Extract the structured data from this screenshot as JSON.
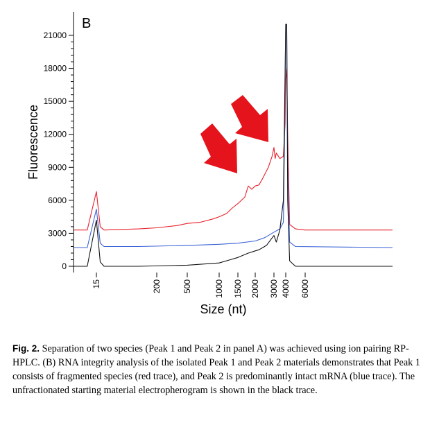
{
  "chart_data": {
    "type": "line",
    "panel_label": "B",
    "xlabel": "Size (nt)",
    "ylabel": "Fluorescence",
    "ylim": [
      -300,
      22000
    ],
    "x_ticks": [
      "15",
      "200",
      "500",
      "1000",
      "1500",
      "2000",
      "3000",
      "4000",
      "6000"
    ],
    "y_ticks": [
      0,
      3000,
      6000,
      9000,
      12000,
      15000,
      18000,
      21000
    ],
    "y_tick_labels": [
      "0",
      "3000",
      "6000",
      "9000",
      "12000",
      "15000",
      "18000",
      "21000"
    ],
    "grid": false,
    "legend": "none",
    "series": [
      {
        "color": "#e8202a",
        "points": [
          [
            14,
            3300
          ],
          [
            14.6,
            3300
          ],
          [
            15,
            6800
          ],
          [
            15.5,
            3600
          ],
          [
            16,
            3300
          ],
          [
            100,
            3400
          ],
          [
            200,
            3500
          ],
          [
            400,
            3700
          ],
          [
            500,
            3900
          ],
          [
            700,
            4000
          ],
          [
            900,
            4300
          ],
          [
            1000,
            4500
          ],
          [
            1200,
            4800
          ],
          [
            1350,
            5300
          ],
          [
            1500,
            5700
          ],
          [
            1700,
            6300
          ],
          [
            1800,
            7300
          ],
          [
            1900,
            7000
          ],
          [
            2000,
            7300
          ],
          [
            2200,
            7400
          ],
          [
            2400,
            8000
          ],
          [
            2700,
            9000
          ],
          [
            2900,
            10000
          ],
          [
            3000,
            10800
          ],
          [
            3100,
            9800
          ],
          [
            3200,
            10300
          ],
          [
            3500,
            9800
          ],
          [
            3800,
            10000
          ],
          [
            3950,
            13000
          ],
          [
            4000,
            17000
          ],
          [
            4100,
            18000
          ],
          [
            4200,
            12000
          ],
          [
            4400,
            3800
          ],
          [
            5000,
            3400
          ],
          [
            6000,
            3300
          ],
          [
            7000,
            3300
          ]
        ]
      },
      {
        "color": "#3a63d6",
        "points": [
          [
            14,
            1700
          ],
          [
            14.6,
            1700
          ],
          [
            15,
            5200
          ],
          [
            15.5,
            2100
          ],
          [
            16,
            1800
          ],
          [
            100,
            1800
          ],
          [
            500,
            1900
          ],
          [
            1000,
            2000
          ],
          [
            1500,
            2100
          ],
          [
            2000,
            2300
          ],
          [
            2500,
            2600
          ],
          [
            3000,
            3100
          ],
          [
            3500,
            3400
          ],
          [
            3800,
            4000
          ],
          [
            3900,
            12000
          ],
          [
            4000,
            22000
          ],
          [
            4100,
            22000
          ],
          [
            4200,
            9000
          ],
          [
            4400,
            2200
          ],
          [
            5000,
            1800
          ],
          [
            7000,
            1700
          ]
        ]
      },
      {
        "color": "#111111",
        "points": [
          [
            14,
            0
          ],
          [
            14.6,
            0
          ],
          [
            15,
            4200
          ],
          [
            15.5,
            400
          ],
          [
            16,
            0
          ],
          [
            100,
            0
          ],
          [
            500,
            100
          ],
          [
            1000,
            300
          ],
          [
            1300,
            600
          ],
          [
            1500,
            800
          ],
          [
            1800,
            1200
          ],
          [
            2000,
            1400
          ],
          [
            2200,
            1500
          ],
          [
            2600,
            1900
          ],
          [
            3000,
            2800
          ],
          [
            3200,
            2200
          ],
          [
            3500,
            3300
          ],
          [
            3800,
            6000
          ],
          [
            3900,
            14000
          ],
          [
            4000,
            22000
          ],
          [
            4100,
            22000
          ],
          [
            4200,
            6000
          ],
          [
            4400,
            500
          ],
          [
            5000,
            0
          ],
          [
            7000,
            0
          ]
        ]
      }
    ],
    "annotations": [
      {
        "type": "arrow",
        "color": "#e5131b",
        "points_to": "Peak 1 fragmented species"
      },
      {
        "type": "arrow",
        "color": "#e5131b",
        "points_to": "Peak 1 fragmented species"
      }
    ]
  },
  "caption": {
    "label": "Fig. 2.",
    "text": "Separation of two species (Peak 1 and Peak 2 in panel A) was achieved using ion pairing RP-HPLC. (B) RNA integrity analysis of the isolated Peak 1 and Peak 2 materials demonstrates that Peak 1 consists of fragmented species (red trace), and Peak 2 is predominantly intact mRNA (blue trace). The unfractionated starting material electropherogram is shown in the black trace."
  }
}
